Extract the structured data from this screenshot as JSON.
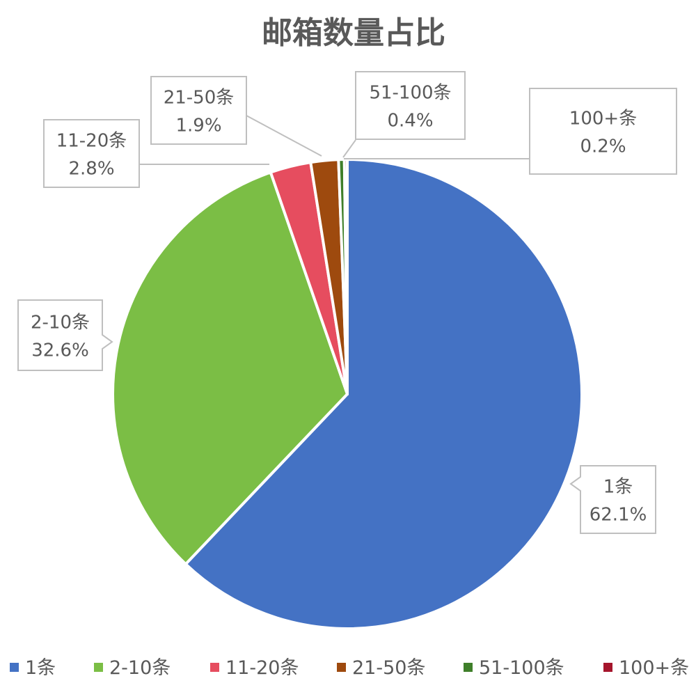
{
  "chart_data": {
    "type": "pie",
    "title": "邮箱数量占比",
    "legend_position": "bottom",
    "slices": [
      {
        "name": "1条",
        "value": 62.1,
        "label": "62.1%",
        "color": "#4472C4"
      },
      {
        "name": "2-10条",
        "value": 32.6,
        "label": "32.6%",
        "color": "#7BBE45"
      },
      {
        "name": "11-20条",
        "value": 2.8,
        "label": "2.8%",
        "color": "#E64D5F"
      },
      {
        "name": "21-50条",
        "value": 1.9,
        "label": "1.9%",
        "color": "#9E4A0E"
      },
      {
        "name": "51-100条",
        "value": 0.4,
        "label": "0.4%",
        "color": "#3F7F2A"
      },
      {
        "name": "100+条",
        "value": 0.2,
        "label": "0.2%",
        "color": "#A5152C"
      }
    ]
  }
}
